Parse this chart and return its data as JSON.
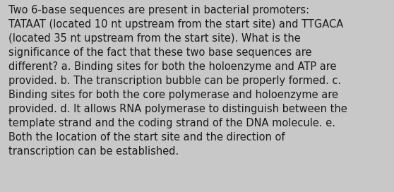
{
  "background_color": "#c8c8c8",
  "text_color": "#1a1a1a",
  "font_size": 10.5,
  "lines": [
    "Two 6-base sequences are present in bacterial promoters:",
    "TATAAT (located 10 nt upstream from the start site) and TTGACA",
    "(located 35 nt upstream from the start site). What is the",
    "significance of the fact that these two base sequences are",
    "different? a. Binding sites for both the holoenzyme and ATP are",
    "provided. b. The transcription bubble can be properly formed. c.",
    "Binding sites for both the core polymerase and holoenzyme are",
    "provided. d. It allows RNA polymerase to distinguish between the",
    "template strand and the coding strand of the DNA molecule. e.",
    "Both the location of the start site and the direction of",
    "transcription can be established."
  ],
  "fig_width": 5.58,
  "fig_height": 2.72,
  "dpi": 100
}
